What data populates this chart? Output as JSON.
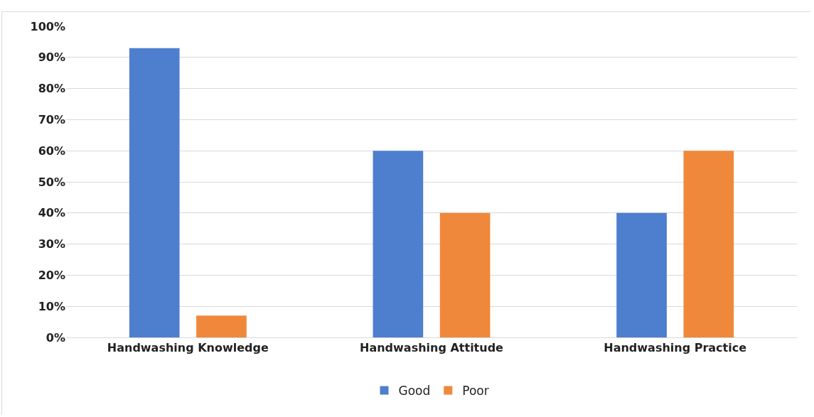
{
  "chart_data": {
    "type": "bar",
    "categories": [
      "Handwashing Knowledge",
      "Handwashing Attitude",
      "Handwashing Practice"
    ],
    "series": [
      {
        "name": "Good",
        "color": "#4e7fcf",
        "values": [
          93,
          60,
          40
        ]
      },
      {
        "name": "Poor",
        "color": "#f0883b",
        "values": [
          7,
          40,
          60
        ]
      }
    ],
    "ylim": [
      0,
      100
    ],
    "yticks": [
      {
        "value": 0,
        "label": "0%"
      },
      {
        "value": 10,
        "label": "10%"
      },
      {
        "value": 20,
        "label": "20%"
      },
      {
        "value": 30,
        "label": "30%"
      },
      {
        "value": 40,
        "label": "40%"
      },
      {
        "value": 50,
        "label": "50%"
      },
      {
        "value": 60,
        "label": "60%"
      },
      {
        "value": 70,
        "label": "70%"
      },
      {
        "value": 80,
        "label": "80%"
      },
      {
        "value": 90,
        "label": "90%"
      },
      {
        "value": 100,
        "label": "100%"
      }
    ],
    "grid": "y",
    "legend": "bottom"
  }
}
